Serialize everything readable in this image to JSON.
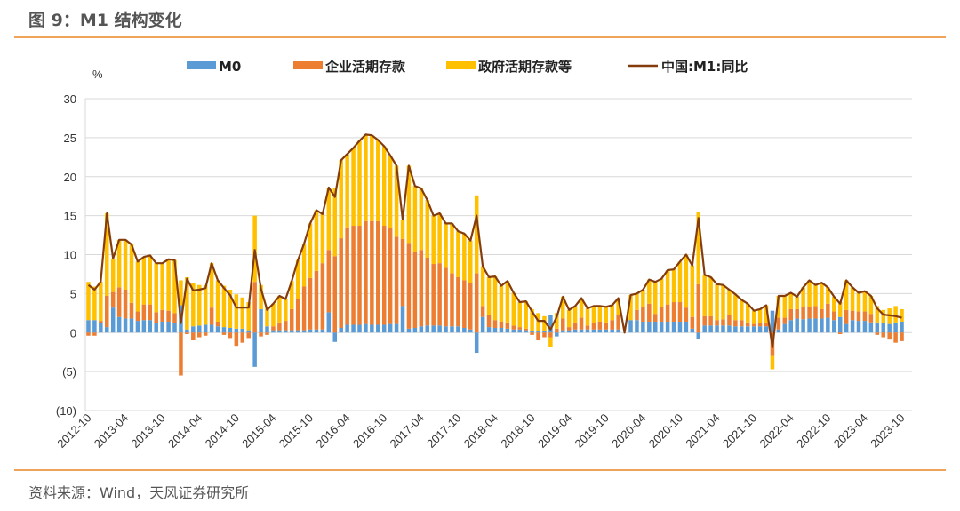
{
  "title": "图 9：M1 结构变化",
  "source": "资料来源：Wind，天风证券研究所",
  "colors": {
    "m0": "#5b9bd5",
    "corp": "#ed7d31",
    "gov": "#ffc000",
    "line": "#843c0c",
    "rule": "#f0a35b",
    "grid": "#d9d9d9"
  },
  "chart_data": {
    "type": "bar",
    "title": "M1 结构变化",
    "ylabel": "%",
    "ylim": [
      -10,
      30
    ],
    "yticks": [
      30,
      25,
      20,
      15,
      10,
      5,
      0,
      -5,
      -10
    ],
    "ytick_labels": [
      "30",
      "25",
      "20",
      "15",
      "10",
      "5",
      "0",
      "(5)",
      "(10)"
    ],
    "grid": true,
    "legend_position": "top",
    "x_start": "2012-10",
    "x_end": "2023-10",
    "xtick_labels": [
      "2012-10",
      "2013-04",
      "2013-10",
      "2014-04",
      "2014-10",
      "2015-04",
      "2015-10",
      "2016-04",
      "2016-10",
      "2017-04",
      "2017-10",
      "2018-04",
      "2018-10",
      "2019-04",
      "2019-10",
      "2020-04",
      "2020-10",
      "2021-04",
      "2021-10",
      "2022-04",
      "2022-10",
      "2023-04",
      "2023-10"
    ],
    "series": [
      {
        "name": "M0",
        "kind": "stacked-bar",
        "values": [
          1.6,
          1.6,
          1.2,
          0.7,
          3.2,
          2.0,
          1.8,
          1.8,
          1.5,
          1.6,
          1.6,
          1.2,
          1.4,
          1.4,
          1.2,
          3.5,
          0.4,
          0.8,
          0.9,
          1.0,
          1.0,
          0.8,
          0.7,
          0.6,
          0.5,
          0.5,
          0.3,
          -4.4,
          3.0,
          0.8,
          0.3,
          0.3,
          0.3,
          0.3,
          0.3,
          0.3,
          0.4,
          0.4,
          0.4,
          2.6,
          -1.2,
          0.6,
          1.0,
          1.0,
          1.0,
          1.1,
          1.0,
          1.0,
          1.0,
          1.1,
          1.1,
          3.4,
          0.5,
          0.6,
          0.8,
          0.9,
          0.9,
          0.9,
          0.8,
          0.8,
          0.8,
          0.6,
          0.4,
          -2.6,
          2.0,
          0.7,
          0.6,
          0.6,
          0.5,
          0.4,
          0.4,
          0.3,
          0.2,
          0.2,
          0.2,
          2.2,
          -0.5,
          0.3,
          0.3,
          0.4,
          0.4,
          0.4,
          0.4,
          0.4,
          0.4,
          0.4,
          0.4,
          0.0,
          1.6,
          1.6,
          1.4,
          1.4,
          1.4,
          1.4,
          1.4,
          1.4,
          1.4,
          1.4,
          0.5,
          -0.8,
          0.9,
          0.9,
          0.9,
          0.9,
          0.9,
          0.8,
          0.8,
          0.8,
          0.8,
          0.8,
          0.8,
          2.8,
          0.4,
          1.1,
          1.6,
          1.8,
          1.7,
          1.8,
          1.8,
          1.8,
          1.9,
          1.6,
          2.0,
          1.1,
          1.6,
          1.5,
          1.5,
          1.3,
          1.3,
          1.2,
          1.1,
          1.3,
          1.4
        ]
      },
      {
        "name": "企业活期存款",
        "kind": "stacked-bar",
        "values": [
          -0.4,
          -0.4,
          0.3,
          4.0,
          2.0,
          3.8,
          3.7,
          2.0,
          1.2,
          2.0,
          2.0,
          1.4,
          1.5,
          1.4,
          1.3,
          -5.5,
          -0.2,
          -1.0,
          -0.6,
          -0.4,
          2.2,
          0.6,
          -0.3,
          -0.7,
          -1.7,
          -1.3,
          -0.7,
          6.5,
          -0.5,
          -0.3,
          0.5,
          1.0,
          1.2,
          2.7,
          4.0,
          5.6,
          6.6,
          7.5,
          8.5,
          8.0,
          9.8,
          11.5,
          12.5,
          12.7,
          12.7,
          13.2,
          13.3,
          13.3,
          12.7,
          12.3,
          11.2,
          8.6,
          11.0,
          9.8,
          9.8,
          8.7,
          7.9,
          8.0,
          7.5,
          6.8,
          6.3,
          6.1,
          6.0,
          7.6,
          1.4,
          1.5,
          1.0,
          0.8,
          0.8,
          0.5,
          0.3,
          0.2,
          -0.3,
          -1.0,
          -0.6,
          -0.6,
          0.5,
          1.5,
          0.4,
          0.9,
          1.5,
          0.5,
          0.8,
          1.0,
          0.9,
          1.2,
          1.9,
          0.0,
          0.0,
          1.3,
          1.9,
          2.3,
          1.0,
          1.9,
          2.2,
          2.5,
          2.5,
          1.8,
          1.5,
          6.2,
          1.2,
          1.2,
          0.7,
          0.8,
          1.3,
          0.8,
          0.8,
          0.5,
          0.3,
          0.4,
          0.5,
          -3.0,
          1.5,
          0.8,
          1.4,
          1.2,
          1.6,
          1.5,
          1.6,
          1.2,
          1.8,
          1.1,
          -0.2,
          1.8,
          1.2,
          1.2,
          1.2,
          1.1,
          -0.3,
          -0.6,
          -0.9,
          -1.3,
          -1.1
        ]
      },
      {
        "name": "政府活期存款等",
        "kind": "stacked-bar",
        "values": [
          4.9,
          4.3,
          5.0,
          10.6,
          4.3,
          6.1,
          6.4,
          7.5,
          6.4,
          6.1,
          6.3,
          6.3,
          6.0,
          6.6,
          6.8,
          3.2,
          6.7,
          5.6,
          5.2,
          5.1,
          5.7,
          5.3,
          5.3,
          4.9,
          4.4,
          4.0,
          3.6,
          8.5,
          3.1,
          2.4,
          2.9,
          3.4,
          2.8,
          3.6,
          5.0,
          5.5,
          7.0,
          7.8,
          6.3,
          8.0,
          8.8,
          10.0,
          9.4,
          10.0,
          10.9,
          11.1,
          11.0,
          10.4,
          10.2,
          9.3,
          9.1,
          2.5,
          9.9,
          8.4,
          7.9,
          7.4,
          6.2,
          6.4,
          5.7,
          6.4,
          5.9,
          6.0,
          5.4,
          10.0,
          5.1,
          4.9,
          5.6,
          4.6,
          5.3,
          4.2,
          3.2,
          3.5,
          2.8,
          2.3,
          1.9,
          -1.2,
          2.0,
          2.8,
          2.2,
          2.1,
          2.5,
          2.2,
          2.2,
          2.0,
          2.0,
          1.9,
          2.1,
          0.0,
          3.2,
          2.1,
          2.2,
          3.1,
          4.1,
          3.6,
          4.4,
          4.2,
          5.2,
          6.8,
          6.6,
          9.3,
          5.3,
          5.0,
          4.6,
          4.4,
          3.3,
          3.3,
          2.6,
          2.4,
          1.7,
          1.8,
          2.2,
          -1.7,
          2.8,
          2.8,
          2.1,
          1.6,
          2.5,
          3.4,
          2.7,
          3.4,
          2.1,
          1.9,
          1.9,
          3.8,
          3.0,
          2.4,
          2.6,
          2.3,
          2.1,
          1.7,
          2.0,
          2.1,
          1.6
        ]
      },
      {
        "name": "中国:M1:同比",
        "kind": "line",
        "values": [
          6.1,
          5.5,
          6.5,
          15.3,
          9.5,
          11.9,
          11.9,
          11.3,
          9.1,
          9.7,
          9.9,
          8.9,
          8.9,
          9.4,
          9.3,
          1.2,
          6.9,
          5.4,
          5.5,
          5.7,
          8.9,
          6.7,
          5.7,
          4.8,
          3.2,
          3.2,
          3.2,
          10.6,
          5.6,
          2.9,
          3.7,
          4.7,
          4.3,
          6.6,
          9.3,
          11.4,
          14.0,
          15.7,
          15.2,
          18.6,
          17.4,
          22.1,
          22.9,
          23.7,
          24.6,
          25.4,
          25.3,
          24.7,
          23.9,
          22.7,
          21.4,
          14.5,
          21.4,
          18.8,
          18.5,
          17.0,
          15.0,
          15.3,
          14.0,
          14.0,
          13.0,
          12.7,
          11.8,
          15.0,
          8.5,
          7.1,
          7.2,
          6.0,
          6.6,
          5.1,
          3.9,
          4.0,
          2.7,
          1.5,
          1.5,
          0.4,
          2.0,
          4.6,
          2.9,
          3.4,
          4.4,
          3.1,
          3.4,
          3.4,
          3.3,
          3.5,
          4.4,
          0.0,
          4.8,
          5.0,
          5.5,
          6.8,
          6.5,
          6.9,
          8.0,
          8.1,
          9.1,
          10.0,
          8.6,
          14.7,
          7.4,
          7.1,
          6.2,
          6.1,
          5.5,
          4.9,
          4.2,
          3.7,
          2.8,
          3.0,
          3.5,
          -1.9,
          4.7,
          4.7,
          5.1,
          4.6,
          5.8,
          6.7,
          6.1,
          6.4,
          5.8,
          4.6,
          3.7,
          6.7,
          5.8,
          5.1,
          5.3,
          4.7,
          3.1,
          2.3,
          2.2,
          2.1,
          1.9
        ]
      }
    ]
  }
}
